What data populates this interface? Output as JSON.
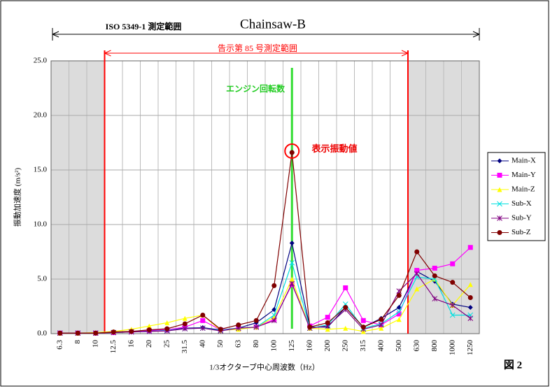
{
  "chart_data": {
    "type": "line",
    "title": "Chainsaw-B",
    "x_label": "1/3オクターブ中心周波数（Hz）",
    "y_label": "振動加速度 (m/s²)",
    "annotations": [
      "ISO 5349-1 測定範囲",
      "告示第 85 号測定範囲",
      "エンジン回転数",
      "表示振動値",
      "図 2"
    ],
    "categories": [
      "6.3",
      "8",
      "10",
      "12.5",
      "16",
      "20",
      "25",
      "31.5",
      "40",
      "50",
      "63",
      "80",
      "100",
      "125",
      "160",
      "200",
      "250",
      "315",
      "400",
      "500",
      "630",
      "800",
      "1000",
      "1250"
    ],
    "ylim": [
      0,
      25
    ],
    "yticks": [
      {
        "value": 0,
        "label": "0.0"
      },
      {
        "value": 5,
        "label": "5.0"
      },
      {
        "value": 10,
        "label": "10.0"
      },
      {
        "value": 15,
        "label": "15.0"
      },
      {
        "value": 20,
        "label": "20.0"
      },
      {
        "value": 25,
        "label": "25.0"
      }
    ],
    "grid": true,
    "legend": "right",
    "series": [
      {
        "name": "Main-X",
        "color": "#000080",
        "marker": "diamond",
        "values": [
          0.05,
          0.05,
          0.05,
          0.1,
          0.15,
          0.25,
          0.35,
          0.5,
          0.55,
          0.35,
          0.5,
          1.0,
          2.2,
          8.3,
          0.6,
          0.6,
          2.4,
          0.6,
          1.4,
          2.4,
          5.7,
          4.8,
          2.7,
          2.4
        ]
      },
      {
        "name": "Main-Y",
        "color": "#ff00ff",
        "marker": "square",
        "values": [
          0.05,
          0.05,
          0.05,
          0.1,
          0.2,
          0.3,
          0.35,
          0.6,
          1.2,
          0.35,
          0.45,
          0.6,
          1.3,
          4.5,
          0.7,
          1.5,
          4.2,
          1.2,
          0.8,
          1.8,
          5.8,
          6.0,
          6.4,
          7.9
        ]
      },
      {
        "name": "Main-Z",
        "color": "#ffff00",
        "marker": "triangle",
        "values": [
          0.05,
          0.05,
          0.1,
          0.2,
          0.4,
          0.7,
          1.0,
          1.4,
          1.7,
          0.3,
          0.4,
          0.6,
          1.5,
          5.0,
          0.5,
          0.4,
          0.5,
          0.2,
          0.5,
          1.3,
          4.1,
          5.0,
          2.6,
          4.5
        ]
      },
      {
        "name": "Sub-X",
        "color": "#00e0e0",
        "marker": "x",
        "values": [
          0.05,
          0.05,
          0.05,
          0.1,
          0.15,
          0.2,
          0.3,
          0.45,
          0.5,
          0.3,
          0.5,
          0.6,
          1.7,
          6.5,
          0.5,
          0.8,
          2.7,
          0.5,
          0.9,
          2.0,
          5.2,
          5.0,
          1.7,
          1.7
        ]
      },
      {
        "name": "Sub-Y",
        "color": "#800080",
        "marker": "star",
        "values": [
          0.05,
          0.05,
          0.05,
          0.1,
          0.15,
          0.2,
          0.25,
          0.45,
          0.5,
          0.25,
          0.5,
          0.6,
          1.2,
          4.6,
          0.5,
          0.7,
          2.2,
          0.4,
          0.8,
          3.9,
          5.5,
          3.2,
          2.6,
          1.4
        ]
      },
      {
        "name": "Sub-Z",
        "color": "#800000",
        "marker": "circle",
        "values": [
          0.05,
          0.05,
          0.05,
          0.15,
          0.2,
          0.35,
          0.45,
          0.9,
          1.7,
          0.4,
          0.8,
          1.2,
          4.4,
          16.6,
          0.6,
          1.0,
          2.4,
          0.6,
          1.3,
          3.5,
          7.5,
          5.3,
          4.7,
          3.3
        ]
      }
    ]
  }
}
